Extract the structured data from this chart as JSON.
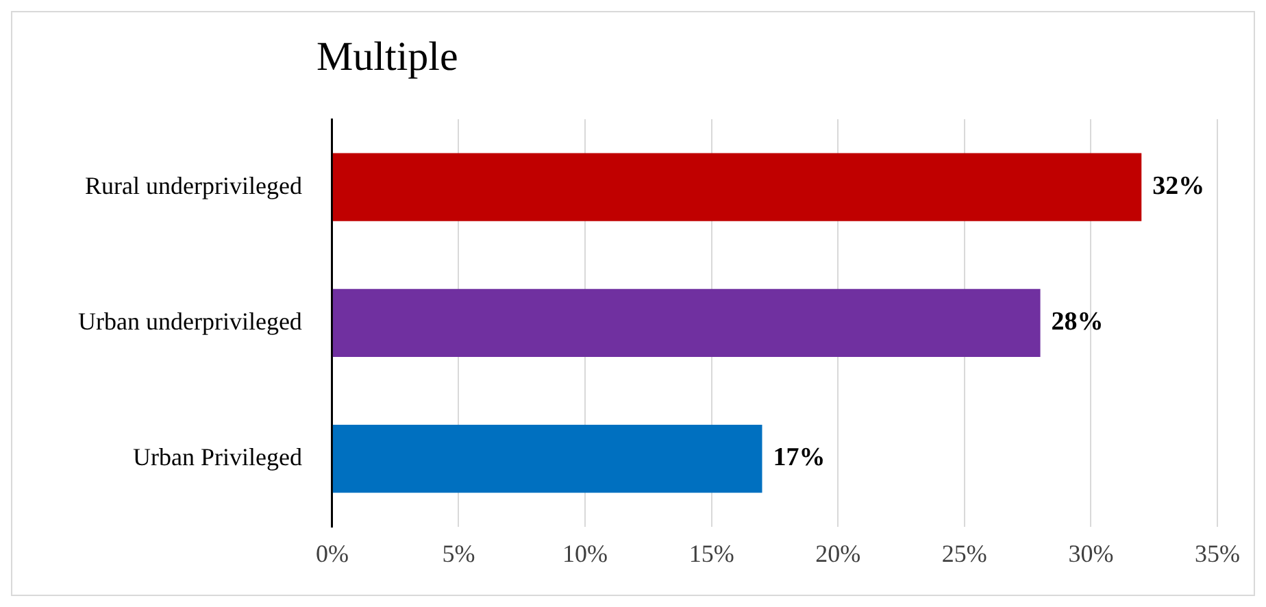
{
  "chart_data": {
    "type": "bar",
    "orientation": "horizontal",
    "title": "Multiple",
    "categories": [
      "Rural underprivileged",
      "Urban underprivileged",
      "Urban Privileged"
    ],
    "values": [
      32,
      28,
      17
    ],
    "colors": [
      "#c00000",
      "#7030a0",
      "#0070c0"
    ],
    "value_labels": [
      "32%",
      "28%",
      "17%"
    ],
    "xlim": [
      0,
      35
    ],
    "xticks": [
      {
        "value": 0,
        "label": "0%"
      },
      {
        "value": 5,
        "label": "5%"
      },
      {
        "value": 10,
        "label": "10%"
      },
      {
        "value": 15,
        "label": "15%"
      },
      {
        "value": 20,
        "label": "20%"
      },
      {
        "value": 25,
        "label": "25%"
      },
      {
        "value": 30,
        "label": "30%"
      },
      {
        "value": 35,
        "label": "35%"
      }
    ],
    "grid": "x",
    "legend": false
  }
}
